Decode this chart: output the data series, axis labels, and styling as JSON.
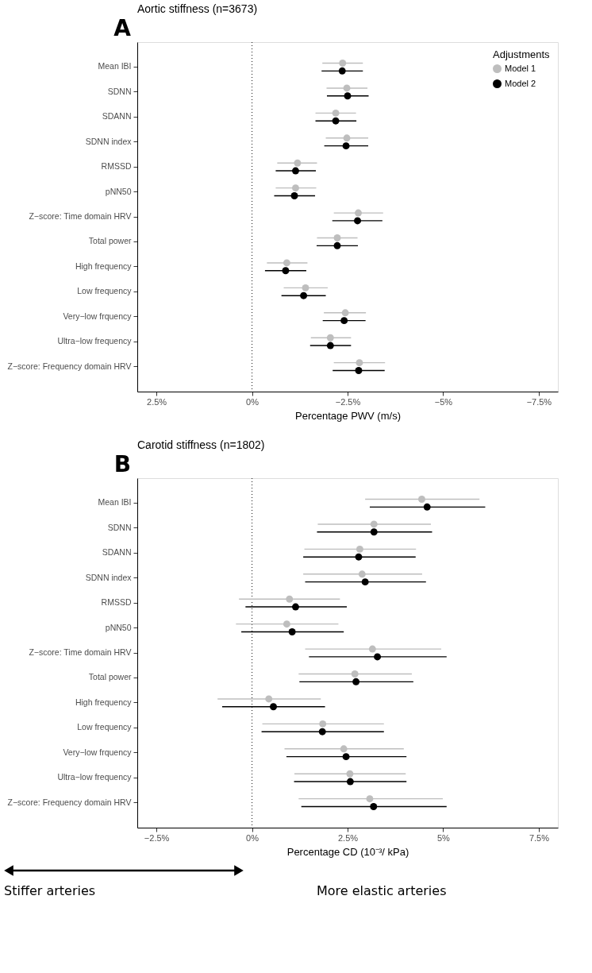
{
  "chart_data": [
    {
      "type": "scatter",
      "orientation": "horizontal",
      "title": "Aortic stiffness (n=3673)",
      "xlabel": "Percentage PWV (m/s)",
      "legend_title": "Adjustments",
      "legend": "top right",
      "marker": "circle",
      "grid": false,
      "categories": [
        "Mean IBI",
        "SDNN",
        "SDANN",
        "SDNN index",
        "RMSSD",
        "pNN50",
        "Z−score: Time domain HRV",
        "Total power",
        "High frequency",
        "Low frequency",
        "Very−low frquency",
        "Ultra−low frequency",
        "Z−score: Frequency domain HRV"
      ],
      "xlim": [
        3,
        -8
      ],
      "xticks": [
        {
          "value": 2.5,
          "label": "2.5%"
        },
        {
          "value": 0,
          "label": "0%"
        },
        {
          "value": -2.5,
          "label": "−2.5%"
        },
        {
          "value": -5,
          "label": "−5%"
        },
        {
          "value": -7.5,
          "label": "−7.5%"
        }
      ],
      "ref_lines": [
        {
          "axis": "x",
          "value": 0,
          "line_style": "dotted",
          "color": "#333333"
        }
      ],
      "annotations": [
        "A"
      ],
      "series": [
        {
          "name": "Model 1",
          "color": "#bebebe",
          "values": [
            -2.37,
            -2.48,
            -2.19,
            -2.48,
            -1.19,
            -1.14,
            -2.78,
            -2.23,
            -0.91,
            -1.4,
            -2.44,
            -2.05,
            -2.81
          ],
          "errors": [
            [
              -1.84,
              -2.9
            ],
            [
              -1.95,
              -3.02
            ],
            [
              -1.66,
              -2.72
            ],
            [
              -1.93,
              -3.04
            ],
            [
              -0.66,
              -1.7
            ],
            [
              -0.62,
              -1.68
            ],
            [
              -2.14,
              -3.43
            ],
            [
              -1.7,
              -2.76
            ],
            [
              -0.39,
              -1.45
            ],
            [
              -0.83,
              -1.98
            ],
            [
              -1.88,
              -2.98
            ],
            [
              -1.54,
              -2.59
            ],
            [
              -2.14,
              -3.48
            ]
          ]
        },
        {
          "name": "Model 2",
          "color": "#000000",
          "values": [
            -2.36,
            -2.5,
            -2.19,
            -2.46,
            -1.14,
            -1.11,
            -2.76,
            -2.23,
            -0.88,
            -1.35,
            -2.41,
            -2.05,
            -2.79
          ],
          "errors": [
            [
              -1.82,
              -2.9
            ],
            [
              -1.96,
              -3.05
            ],
            [
              -1.66,
              -2.73
            ],
            [
              -1.89,
              -3.04
            ],
            [
              -0.62,
              -1.67
            ],
            [
              -0.58,
              -1.65
            ],
            [
              -2.1,
              -3.41
            ],
            [
              -1.69,
              -2.77
            ],
            [
              -0.34,
              -1.42
            ],
            [
              -0.77,
              -1.93
            ],
            [
              -1.85,
              -2.97
            ],
            [
              -1.52,
              -2.59
            ],
            [
              -2.11,
              -3.47
            ]
          ]
        }
      ]
    },
    {
      "type": "scatter",
      "orientation": "horizontal",
      "title": "Carotid stiffness (n=1802)",
      "xlabel": "Percentage CD (10⁻³/ kPa)",
      "marker": "circle",
      "grid": false,
      "categories": [
        "Mean IBI",
        "SDNN",
        "SDANN",
        "SDNN index",
        "RMSSD",
        "pNN50",
        "Z−score: Time domain HRV",
        "Total power",
        "High frequency",
        "Low frequency",
        "Very−low frquency",
        "Ultra−low frequency",
        "Z−score: Frequency domain HRV"
      ],
      "xlim": [
        -3,
        8
      ],
      "xticks": [
        {
          "value": -2.5,
          "label": "−2.5%"
        },
        {
          "value": 0,
          "label": "0%"
        },
        {
          "value": 2.5,
          "label": "2.5%"
        },
        {
          "value": 5,
          "label": "5%"
        },
        {
          "value": 7.5,
          "label": "7.5%"
        }
      ],
      "ref_lines": [
        {
          "axis": "x",
          "value": 0,
          "line_style": "dotted",
          "color": "#333333"
        }
      ],
      "annotations": [
        "B",
        "Stiffer arteries",
        "More elastic arteries"
      ],
      "series": [
        {
          "name": "Model 1",
          "color": "#bebebe",
          "values": [
            4.44,
            3.19,
            2.82,
            2.88,
            0.98,
            0.91,
            3.15,
            2.69,
            0.44,
            1.85,
            2.4,
            2.56,
            3.08
          ],
          "errors": [
            [
              2.96,
              5.95
            ],
            [
              1.72,
              4.68
            ],
            [
              1.37,
              4.29
            ],
            [
              1.34,
              4.45
            ],
            [
              -0.34,
              2.3
            ],
            [
              -0.42,
              2.26
            ],
            [
              1.39,
              4.95
            ],
            [
              1.22,
              4.18
            ],
            [
              -0.9,
              1.8
            ],
            [
              0.27,
              3.45
            ],
            [
              0.85,
              3.97
            ],
            [
              1.11,
              4.02
            ],
            [
              1.22,
              4.99
            ]
          ]
        },
        {
          "name": "Model 2",
          "color": "#000000",
          "values": [
            4.58,
            3.19,
            2.79,
            2.96,
            1.14,
            1.05,
            3.28,
            2.72,
            0.56,
            1.84,
            2.46,
            2.57,
            3.18
          ],
          "errors": [
            [
              3.08,
              6.1
            ],
            [
              1.7,
              4.71
            ],
            [
              1.34,
              4.28
            ],
            [
              1.39,
              4.55
            ],
            [
              -0.17,
              2.48
            ],
            [
              -0.28,
              2.4
            ],
            [
              1.49,
              5.09
            ],
            [
              1.24,
              4.22
            ],
            [
              -0.78,
              1.91
            ],
            [
              0.25,
              3.45
            ],
            [
              0.9,
              4.04
            ],
            [
              1.1,
              4.04
            ],
            [
              1.29,
              5.09
            ]
          ]
        }
      ]
    }
  ]
}
